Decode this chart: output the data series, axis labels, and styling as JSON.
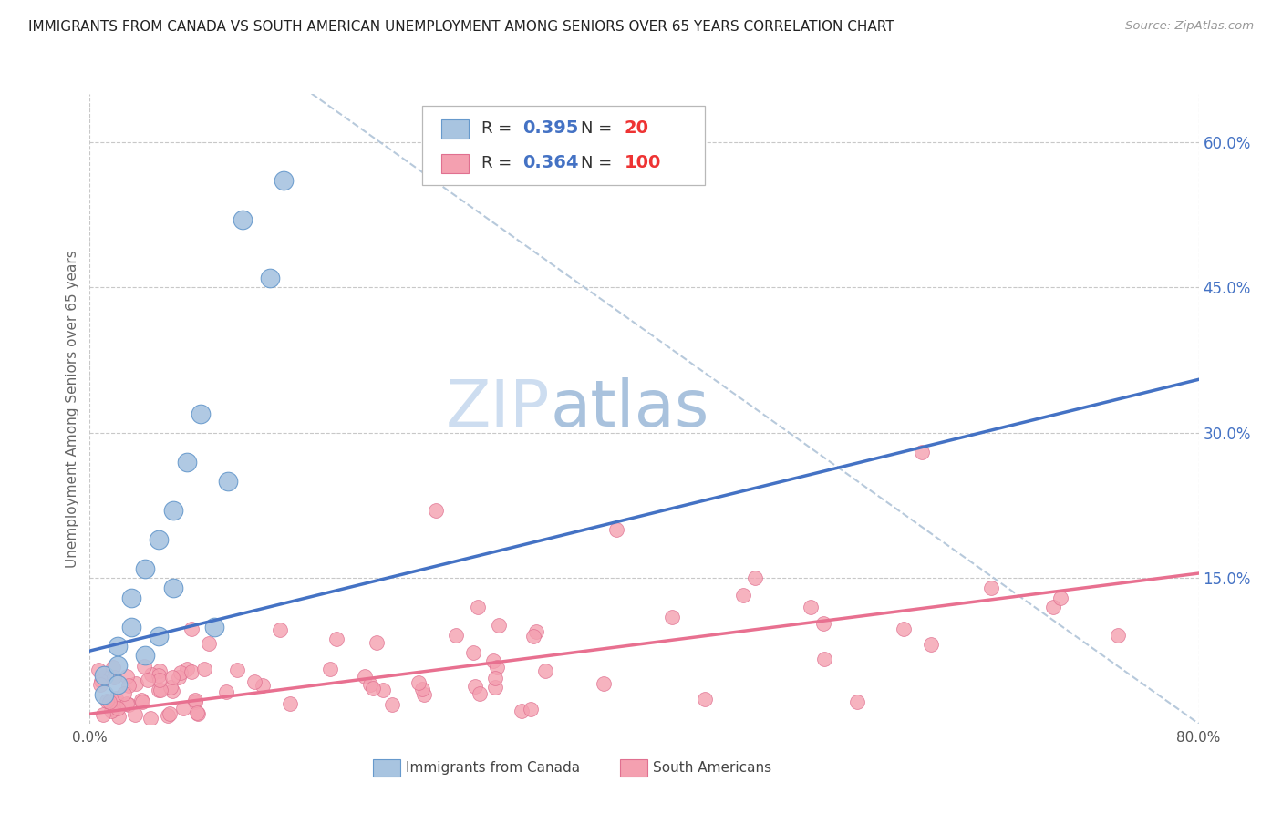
{
  "title": "IMMIGRANTS FROM CANADA VS SOUTH AMERICAN UNEMPLOYMENT AMONG SENIORS OVER 65 YEARS CORRELATION CHART",
  "source": "Source: ZipAtlas.com",
  "ylabel": "Unemployment Among Seniors over 65 years",
  "right_yticks": [
    "60.0%",
    "45.0%",
    "30.0%",
    "15.0%"
  ],
  "right_ytick_vals": [
    0.6,
    0.45,
    0.3,
    0.15
  ],
  "xlim": [
    0.0,
    0.8
  ],
  "ylim": [
    0.0,
    0.65
  ],
  "color_canada": "#a8c4e0",
  "color_canada_edge": "#6699cc",
  "color_south": "#f4a0b0",
  "color_south_edge": "#e07090",
  "color_canada_line": "#4472c4",
  "color_south_line": "#e87090",
  "color_diag": "#b0c4d8",
  "background_color": "#ffffff",
  "grid_color": "#c8c8c8",
  "canada_x": [
    0.01,
    0.01,
    0.02,
    0.02,
    0.02,
    0.03,
    0.03,
    0.04,
    0.04,
    0.05,
    0.05,
    0.06,
    0.06,
    0.07,
    0.08,
    0.09,
    0.1,
    0.11,
    0.13,
    0.14
  ],
  "canada_y": [
    0.03,
    0.05,
    0.04,
    0.06,
    0.08,
    0.1,
    0.13,
    0.07,
    0.16,
    0.09,
    0.19,
    0.14,
    0.22,
    0.27,
    0.32,
    0.1,
    0.25,
    0.52,
    0.46,
    0.56
  ],
  "canada_line_x": [
    0.0,
    0.8
  ],
  "canada_line_y": [
    0.075,
    0.355
  ],
  "south_line_x": [
    0.0,
    0.8
  ],
  "south_line_y": [
    0.01,
    0.155
  ],
  "diag_line_x": [
    0.16,
    0.8
  ],
  "diag_line_y": [
    0.65,
    0.0
  ],
  "watermark_zip": "ZIP",
  "watermark_atlas": "atlas",
  "legend_items": [
    {
      "label": "R = 0.395   N =  20",
      "color": "#a8c4e0",
      "edge": "#6699cc"
    },
    {
      "label": "R = 0.364   N = 100",
      "color": "#f4a0b0",
      "edge": "#e07090"
    }
  ]
}
